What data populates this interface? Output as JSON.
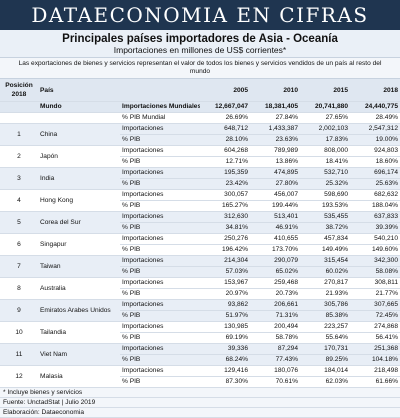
{
  "banner": "DATAECONOMIA EN CIFRAS",
  "title": "Principales países importadores de Asia - Oceanía",
  "subtitle": "Importaciones en millones de US$ corrientes*",
  "intro": "Las exportaciones de bienes y servicios representan el valor de todos los bienes y servicios vendidos de un país al resto del mundo",
  "table": {
    "headers": {
      "position": "Posición 2018",
      "country": "País",
      "years": [
        "2005",
        "2010",
        "2015",
        "2018"
      ]
    },
    "world": {
      "label": "Mundo",
      "rows": [
        {
          "metric": "Importaciones Mundiales",
          "values": [
            "12,667,047",
            "18,381,405",
            "20,741,880",
            "24,440,775"
          ]
        },
        {
          "metric": "% PIB Mundial",
          "values": [
            "26.69%",
            "27.84%",
            "27.65%",
            "28.49%"
          ]
        }
      ]
    },
    "countries": [
      {
        "position": "1",
        "name": "China",
        "rows": [
          {
            "metric": "Importaciones",
            "values": [
              "648,712",
              "1,433,387",
              "2,002,103",
              "2,547,312"
            ]
          },
          {
            "metric": "% PIB",
            "values": [
              "28.10%",
              "23.63%",
              "17.83%",
              "19.00%"
            ]
          }
        ]
      },
      {
        "position": "2",
        "name": "Japón",
        "rows": [
          {
            "metric": "Importaciones",
            "values": [
              "604,268",
              "789,989",
              "808,000",
              "924,803"
            ]
          },
          {
            "metric": "% PIB",
            "values": [
              "12.71%",
              "13.86%",
              "18.41%",
              "18.60%"
            ]
          }
        ]
      },
      {
        "position": "3",
        "name": "India",
        "rows": [
          {
            "metric": "Importaciones",
            "values": [
              "195,359",
              "474,895",
              "532,710",
              "696,174"
            ]
          },
          {
            "metric": "% PIB",
            "values": [
              "23.42%",
              "27.80%",
              "25.32%",
              "25.63%"
            ]
          }
        ]
      },
      {
        "position": "4",
        "name": "Hong Kong",
        "rows": [
          {
            "metric": "Importaciones",
            "values": [
              "300,057",
              "456,007",
              "598,690",
              "682,632"
            ]
          },
          {
            "metric": "% PIB",
            "values": [
              "165.27%",
              "199.44%",
              "193.53%",
              "188.04%"
            ]
          }
        ]
      },
      {
        "position": "5",
        "name": "Corea del Sur",
        "rows": [
          {
            "metric": "Importaciones",
            "values": [
              "312,630",
              "513,401",
              "535,455",
              "637,833"
            ]
          },
          {
            "metric": "% PIB",
            "values": [
              "34.81%",
              "46.91%",
              "38.72%",
              "39.39%"
            ]
          }
        ]
      },
      {
        "position": "6",
        "name": "Singapur",
        "rows": [
          {
            "metric": "Importaciones",
            "values": [
              "250,276",
              "410,655",
              "457,834",
              "540,210"
            ]
          },
          {
            "metric": "% PIB",
            "values": [
              "196.42%",
              "173.70%",
              "149.49%",
              "149.60%"
            ]
          }
        ]
      },
      {
        "position": "7",
        "name": "Taiwan",
        "rows": [
          {
            "metric": "Importaciones",
            "values": [
              "214,304",
              "290,079",
              "315,454",
              "342,300"
            ]
          },
          {
            "metric": "% PIB",
            "values": [
              "57.03%",
              "65.02%",
              "60.02%",
              "58.08%"
            ]
          }
        ]
      },
      {
        "position": "8",
        "name": "Australia",
        "rows": [
          {
            "metric": "Importaciones",
            "values": [
              "153,967",
              "259,468",
              "270,817",
              "308,811"
            ]
          },
          {
            "metric": "% PIB",
            "values": [
              "20.97%",
              "20.73%",
              "21.93%",
              "21.77%"
            ]
          }
        ]
      },
      {
        "position": "9",
        "name": "Emiratos Arabes Unidos",
        "rows": [
          {
            "metric": "Importaciones",
            "values": [
              "93,862",
              "206,661",
              "305,786",
              "307,665"
            ]
          },
          {
            "metric": "% PIB",
            "values": [
              "51.97%",
              "71.31%",
              "85.38%",
              "72.45%"
            ]
          }
        ]
      },
      {
        "position": "10",
        "name": "Tailandia",
        "rows": [
          {
            "metric": "Importaciones",
            "values": [
              "130,985",
              "200,494",
              "223,257",
              "274,868"
            ]
          },
          {
            "metric": "% PIB",
            "values": [
              "69.19%",
              "58.78%",
              "55.64%",
              "56.41%"
            ]
          }
        ]
      },
      {
        "position": "11",
        "name": "Viet Nam",
        "rows": [
          {
            "metric": "Importaciones",
            "values": [
              "39,336",
              "87,294",
              "170,731",
              "251,368"
            ]
          },
          {
            "metric": "% PIB",
            "values": [
              "68.24%",
              "77.43%",
              "89.25%",
              "104.18%"
            ]
          }
        ]
      },
      {
        "position": "12",
        "name": "Malasia",
        "rows": [
          {
            "metric": "Importaciones",
            "values": [
              "129,416",
              "180,076",
              "184,014",
              "218,498"
            ]
          },
          {
            "metric": "% PIB",
            "values": [
              "87.30%",
              "70.61%",
              "62.03%",
              "61.66%"
            ]
          }
        ]
      }
    ]
  },
  "footer": {
    "note": "* Incluye bienes y servicios",
    "source": "Fuente: UnctadStat | Julio 2019",
    "credit": "Elaboración: Dataeconomia"
  }
}
